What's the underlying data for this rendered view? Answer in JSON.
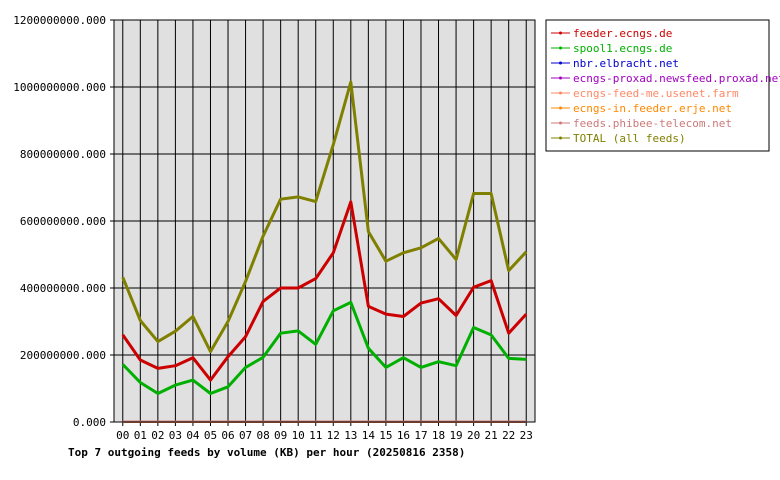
{
  "chart_data": {
    "type": "line",
    "title": "Top 7 outgoing feeds by volume (KB) per hour (20250816 2358)",
    "x": [
      "00",
      "01",
      "02",
      "03",
      "04",
      "05",
      "06",
      "07",
      "08",
      "09",
      "10",
      "11",
      "12",
      "13",
      "14",
      "15",
      "16",
      "17",
      "18",
      "19",
      "20",
      "21",
      "22",
      "23"
    ],
    "y_ticks": [
      "0.000",
      "200000000.000",
      "400000000.000",
      "600000000.000",
      "800000000.000",
      "1000000000.000",
      "1200000000.000"
    ],
    "ylim": [
      0,
      1200000000
    ],
    "grid": true,
    "legend_position": "top-right",
    "series": [
      {
        "name": "feeder.ecngs.de",
        "color": "#cc0000",
        "values": [
          260000000,
          185000000,
          160000000,
          168000000,
          192000000,
          125000000,
          195000000,
          255000000,
          360000000,
          400000000,
          400000000,
          428000000,
          505000000,
          657000000,
          345000000,
          322000000,
          315000000,
          355000000,
          368000000,
          318000000,
          402000000,
          422000000,
          265000000,
          322000000
        ]
      },
      {
        "name": "spool1.ecngs.de",
        "color": "#00b000",
        "values": [
          172000000,
          118000000,
          85000000,
          110000000,
          125000000,
          85000000,
          105000000,
          163000000,
          193000000,
          265000000,
          272000000,
          232000000,
          332000000,
          357000000,
          220000000,
          163000000,
          192000000,
          163000000,
          180000000,
          168000000,
          282000000,
          260000000,
          190000000,
          187000000
        ]
      },
      {
        "name": "nbr.elbracht.net",
        "color": "#0000cc",
        "values": [
          200000,
          200000,
          200000,
          200000,
          200000,
          200000,
          200000,
          200000,
          200000,
          200000,
          200000,
          200000,
          200000,
          200000,
          200000,
          200000,
          200000,
          200000,
          200000,
          200000,
          200000,
          200000,
          200000,
          200000
        ]
      },
      {
        "name": "ecngs-proxad.newsfeed.proxad.net",
        "color": "#a000c0",
        "values": [
          300000,
          300000,
          300000,
          300000,
          300000,
          300000,
          300000,
          300000,
          300000,
          300000,
          300000,
          300000,
          300000,
          300000,
          300000,
          300000,
          300000,
          300000,
          300000,
          300000,
          300000,
          300000,
          300000,
          300000
        ]
      },
      {
        "name": "ecngs-feed-me.usenet.farm",
        "color": "#ff8866",
        "values": [
          500000,
          500000,
          500000,
          500000,
          500000,
          500000,
          500000,
          500000,
          500000,
          500000,
          500000,
          500000,
          500000,
          500000,
          500000,
          500000,
          500000,
          500000,
          500000,
          500000,
          500000,
          500000,
          500000,
          500000
        ]
      },
      {
        "name": "ecngs-in.feeder.erje.net",
        "color": "#ff8800",
        "values": [
          400000,
          400000,
          400000,
          400000,
          400000,
          400000,
          400000,
          400000,
          400000,
          400000,
          400000,
          400000,
          400000,
          400000,
          400000,
          400000,
          400000,
          400000,
          400000,
          400000,
          400000,
          400000,
          400000,
          400000
        ]
      },
      {
        "name": "feeds.phibee-telecom.net",
        "color": "#cc7a7a",
        "values": [
          600000,
          600000,
          600000,
          600000,
          600000,
          600000,
          600000,
          600000,
          600000,
          600000,
          600000,
          600000,
          600000,
          600000,
          600000,
          600000,
          600000,
          600000,
          600000,
          600000,
          600000,
          600000,
          600000,
          600000
        ]
      },
      {
        "name": "TOTAL (all feeds)",
        "color": "#808000",
        "values": [
          432000000,
          303000000,
          240000000,
          271000000,
          315000000,
          210000000,
          300000000,
          420000000,
          555000000,
          665000000,
          672000000,
          658000000,
          828000000,
          1015000000,
          568000000,
          480000000,
          505000000,
          520000000,
          548000000,
          485000000,
          682000000,
          682000000,
          452000000,
          508000000
        ]
      }
    ]
  }
}
